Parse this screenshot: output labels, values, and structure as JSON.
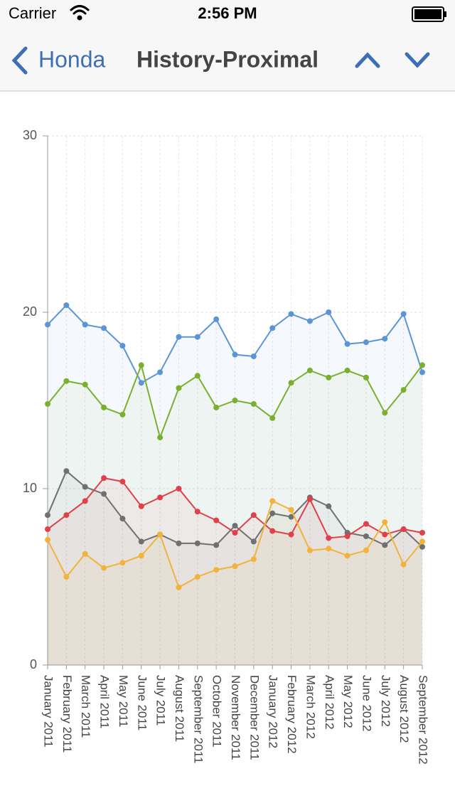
{
  "status_bar": {
    "carrier": "Carrier",
    "time": "2:56 PM"
  },
  "nav_bar": {
    "back": "Honda",
    "title": "History-Proximal"
  },
  "chart_data": {
    "type": "line",
    "categories": [
      "January 2011",
      "February 2011",
      "March 2011",
      "April 2011",
      "May 2011",
      "June 2011",
      "July 2011",
      "August 2011",
      "September 2011",
      "October 2011",
      "November 2011",
      "December 2011",
      "January 2012",
      "February 2012",
      "March 2012",
      "April 2012",
      "May 2012",
      "June 2012",
      "July 2012",
      "August 2012",
      "September 2012"
    ],
    "series": [
      {
        "color": "#5b95d6",
        "values": [
          19.3,
          20.4,
          19.3,
          19.1,
          18.1,
          16.0,
          16.6,
          18.6,
          18.6,
          19.6,
          17.6,
          17.5,
          19.1,
          19.9,
          19.5,
          20.0,
          18.2,
          18.3,
          18.5,
          19.9,
          16.6
        ]
      },
      {
        "color": "#7ab02e",
        "values": [
          14.8,
          16.1,
          15.9,
          14.6,
          14.2,
          17.0,
          12.9,
          15.7,
          16.4,
          14.6,
          15.0,
          14.8,
          14.0,
          16.0,
          16.7,
          16.3,
          16.7,
          16.3,
          14.3,
          15.6,
          17.0
        ]
      },
      {
        "color": "#707070",
        "values": [
          8.5,
          11.0,
          10.1,
          9.7,
          8.3,
          7.0,
          7.4,
          6.9,
          6.9,
          6.8,
          7.9,
          7.0,
          8.6,
          8.4,
          9.5,
          9.0,
          7.5,
          7.3,
          6.8,
          7.7,
          6.7
        ]
      },
      {
        "color": "#e0404a",
        "values": [
          7.7,
          8.5,
          9.3,
          10.6,
          10.4,
          9.0,
          9.5,
          10.0,
          8.7,
          8.2,
          7.5,
          8.5,
          7.6,
          7.4,
          9.4,
          7.2,
          7.3,
          8.0,
          7.4,
          7.7,
          7.5
        ]
      },
      {
        "color": "#f2b33d",
        "values": [
          7.1,
          5.0,
          6.3,
          5.5,
          5.8,
          6.2,
          7.4,
          4.4,
          5.0,
          5.4,
          5.6,
          6.0,
          9.3,
          8.8,
          6.5,
          6.6,
          6.2,
          6.5,
          8.1,
          5.7,
          7.0
        ]
      }
    ],
    "ylim": [
      0,
      30
    ],
    "yticks": [
      0,
      10,
      20,
      30
    ],
    "grid": true
  }
}
